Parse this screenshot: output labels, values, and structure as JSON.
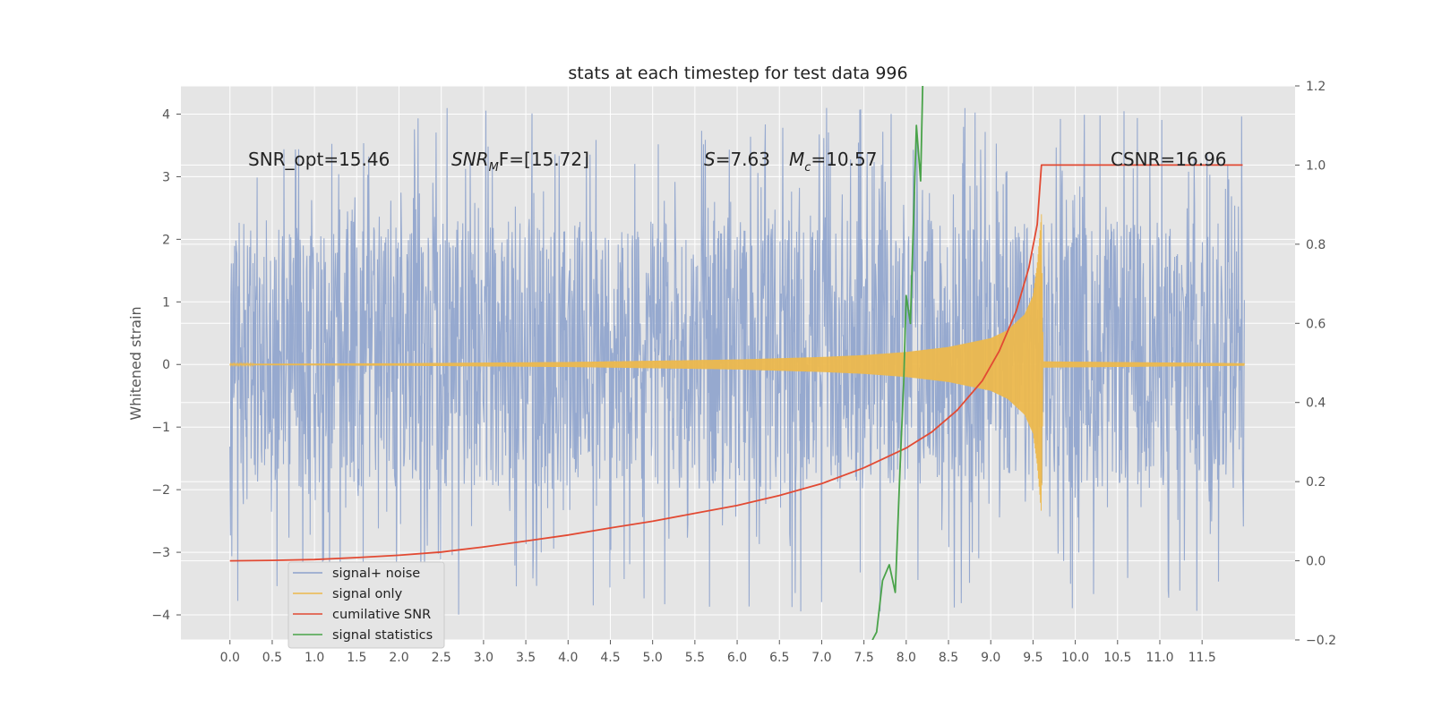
{
  "chart_data": {
    "type": "line",
    "title": "stats at each timestep for test data 996",
    "ylabel": "Whitened strain",
    "xlabel": "",
    "xlim": [
      -0.58,
      12.6
    ],
    "ylim": [
      -4.4,
      4.45
    ],
    "y2lim": [
      -0.2,
      1.2
    ],
    "x_ticks": [
      "0.0",
      "0.5",
      "1.0",
      "1.5",
      "2.0",
      "2.5",
      "3.0",
      "3.5",
      "4.0",
      "4.5",
      "5.0",
      "5.5",
      "6.0",
      "6.5",
      "7.0",
      "7.5",
      "8.0",
      "8.5",
      "9.0",
      "9.5",
      "10.0",
      "10.5",
      "11.0",
      "11.5"
    ],
    "y_ticks": [
      "4",
      "3",
      "2",
      "1",
      "0",
      "−1",
      "−2",
      "−3",
      "−4"
    ],
    "y2_ticks": [
      "1.2",
      "1.0",
      "0.8",
      "0.6",
      "0.4",
      "0.2",
      "0.0",
      "−0.2"
    ],
    "grid": true,
    "legend_position": "lower-left",
    "series": [
      {
        "name": "signal+ noise",
        "color": "#8da2cc",
        "axis": "left",
        "duration": 12.0,
        "band": [
          -2.0,
          2.3
        ],
        "spikes_high_max": 4.1,
        "spikes_low_min": -4.0
      },
      {
        "name": "signal only",
        "color": "#ecb84d",
        "axis": "left",
        "envelope_x": [
          0.0,
          1.0,
          2.0,
          3.0,
          4.0,
          5.0,
          6.0,
          7.0,
          7.5,
          8.0,
          8.5,
          9.0,
          9.2,
          9.4,
          9.5,
          9.55,
          9.6,
          9.62,
          12.0
        ],
        "envelope_y": [
          0.01,
          0.015,
          0.02,
          0.03,
          0.04,
          0.06,
          0.08,
          0.12,
          0.15,
          0.2,
          0.28,
          0.42,
          0.55,
          0.8,
          1.1,
          1.6,
          2.4,
          0.05,
          0.02
        ]
      },
      {
        "name": "cumilative SNR",
        "color": "#e24a33",
        "axis": "right",
        "x": [
          0.0,
          0.5,
          1.0,
          1.5,
          2.0,
          2.5,
          3.0,
          3.5,
          4.0,
          4.5,
          5.0,
          5.5,
          6.0,
          6.5,
          7.0,
          7.5,
          8.0,
          8.3,
          8.6,
          8.9,
          9.1,
          9.3,
          9.45,
          9.55,
          9.6,
          9.62,
          10.0,
          11.0,
          11.98
        ],
        "y": [
          0.0,
          0.001,
          0.003,
          0.008,
          0.014,
          0.022,
          0.035,
          0.05,
          0.065,
          0.083,
          0.1,
          0.12,
          0.14,
          0.165,
          0.195,
          0.235,
          0.285,
          0.325,
          0.38,
          0.455,
          0.53,
          0.63,
          0.74,
          0.85,
          1.0,
          1.0,
          1.0,
          1.0,
          1.0
        ]
      },
      {
        "name": "signal statistics",
        "color": "#4aa34a",
        "axis": "right",
        "x": [
          7.6,
          7.65,
          7.72,
          7.8,
          7.87,
          7.93,
          7.97,
          8.0,
          8.05,
          8.12,
          8.17,
          8.2
        ],
        "y": [
          -0.2,
          -0.18,
          -0.05,
          -0.01,
          -0.08,
          0.25,
          0.45,
          0.67,
          0.6,
          1.1,
          0.96,
          1.25
        ]
      }
    ],
    "annotations": {
      "snr_opt": "SNR_opt=15.46",
      "snr_mf_main": "SNR",
      "snr_mf_sub": "M",
      "snr_mf_rest": "F=[15.72]",
      "s_var": "S",
      "s_rest": "=7.63",
      "mc_var": "M",
      "mc_sub": "c",
      "mc_rest": "=10.57",
      "csnr": "CSNR=16.96"
    }
  }
}
